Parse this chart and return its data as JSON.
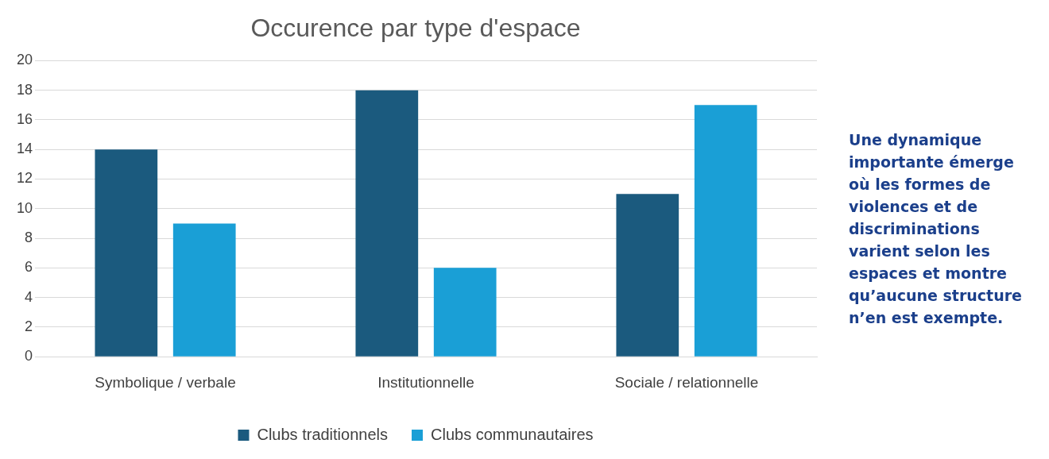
{
  "chart_data": {
    "type": "bar",
    "title": "Occurence par type d'espace",
    "categories": [
      "Symbolique / verbale",
      "Institutionnelle",
      "Sociale / relationnelle"
    ],
    "series": [
      {
        "name": "Clubs traditionnels",
        "color": "#1b5a7e",
        "values": [
          14,
          18,
          11
        ]
      },
      {
        "name": "Clubs communautaires",
        "color": "#1a9fd6",
        "values": [
          9,
          6,
          17
        ]
      }
    ],
    "ylim": [
      0,
      20
    ],
    "yticks": [
      0,
      2,
      4,
      6,
      8,
      10,
      12,
      14,
      16,
      18,
      20
    ],
    "grid": "y",
    "legend": "bottom",
    "annotations": [
      "Une dynamique importante émerge où les formes de violences et de discriminations varient selon les espaces et montre qu’aucune structure n’en est exempte."
    ]
  }
}
